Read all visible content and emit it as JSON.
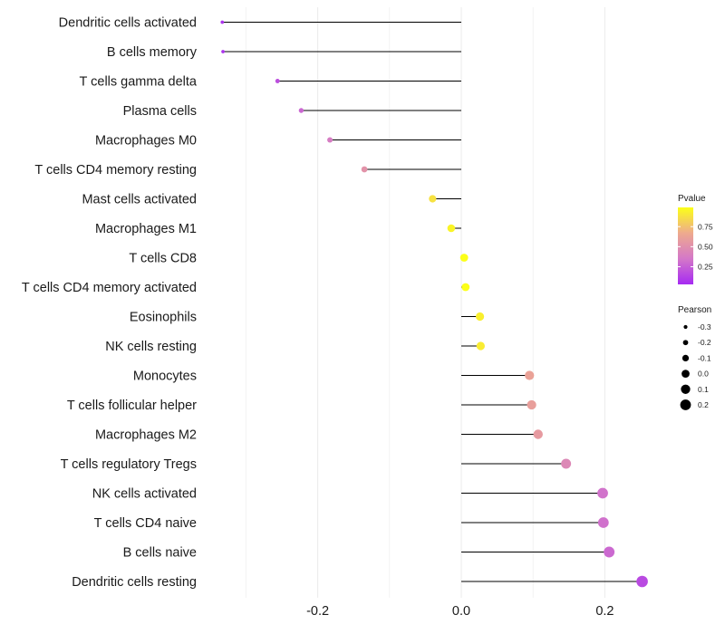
{
  "chart_data": {
    "type": "lollipop",
    "title": "",
    "xlabel": "",
    "ylabel": "",
    "xlim": [
      -0.34,
      0.27
    ],
    "x_ticks": [
      -0.2,
      0.0,
      0.2
    ],
    "x_tick_labels": [
      "-0.2",
      "0.0",
      "0.2"
    ],
    "minor_x_ticks": [
      -0.3,
      -0.1,
      0.1
    ],
    "grid": true,
    "categories": [
      "Dendritic cells activated",
      "B cells memory",
      "T cells gamma delta",
      "Plasma cells",
      "Macrophages M0",
      "T cells CD4 memory resting",
      "Mast cells activated",
      "Macrophages M1",
      "T cells CD8",
      "T cells CD4 memory activated",
      "Eosinophils",
      "NK cells resting",
      "Monocytes",
      "T cells follicular helper",
      "Macrophages M2",
      "T cells regulatory  Tregs ",
      "NK cells activated",
      "T cells CD4 naive",
      "B cells naive",
      "Dendritic cells resting"
    ],
    "pearson": [
      -0.333,
      -0.332,
      -0.256,
      -0.223,
      -0.183,
      -0.135,
      -0.04,
      -0.014,
      0.004,
      0.006,
      0.026,
      0.027,
      0.095,
      0.098,
      0.107,
      0.146,
      0.197,
      0.198,
      0.206,
      0.252
    ],
    "pvalue": [
      0.07,
      0.07,
      0.18,
      0.28,
      0.38,
      0.52,
      0.88,
      0.95,
      0.99,
      0.99,
      0.93,
      0.92,
      0.62,
      0.6,
      0.57,
      0.45,
      0.33,
      0.32,
      0.29,
      0.16
    ],
    "legend": {
      "pvalue": {
        "title": "Pvalue",
        "range": [
          0.03,
          0.99
        ],
        "breaks": [
          0.25,
          0.5,
          0.75
        ],
        "labels": [
          "0.25",
          "0.50",
          "0.75"
        ],
        "colors": [
          "#a62af2",
          "#d478c8",
          "#eeaa8e",
          "#fcff18"
        ]
      },
      "pearson": {
        "title": "Pearson",
        "breaks": [
          -0.3,
          -0.2,
          -0.1,
          0.0,
          0.1,
          0.2
        ],
        "labels": [
          "-0.3",
          "-0.2",
          "-0.1",
          "0.0",
          "0.1",
          "0.2"
        ]
      }
    }
  }
}
